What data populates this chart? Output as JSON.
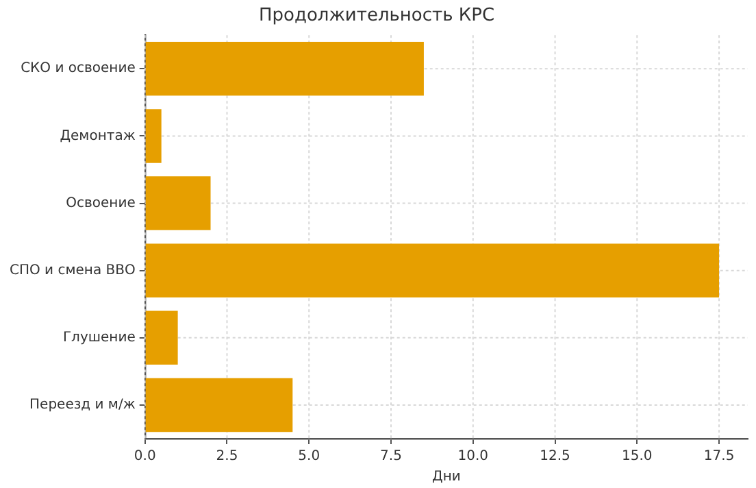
{
  "chart_data": {
    "type": "bar",
    "orientation": "horizontal",
    "title": "Продолжительность КРС",
    "xlabel": "Дни",
    "categories": [
      "СКО и освоение",
      "Демонтаж",
      "Освоение",
      "СПО и смена ВВО",
      "Глушение",
      "Переезд и м/ж"
    ],
    "values": [
      8.5,
      0.5,
      2,
      17.5,
      1,
      4.5
    ],
    "color": "#e69f00",
    "xlim": [
      0,
      18.375
    ],
    "xticks": [
      {
        "value": 0,
        "label": "0.0"
      },
      2.5,
      {
        "value": 5,
        "label": "5.0"
      },
      {
        "value": 7.5,
        "label": "7.5"
      },
      {
        "value": 10,
        "label": "10.0"
      },
      {
        "value": 12.5,
        "label": "12.5"
      },
      {
        "value": 15,
        "label": "15.0"
      },
      {
        "value": 17.5,
        "label": "17.5"
      }
    ],
    "grid": true
  }
}
